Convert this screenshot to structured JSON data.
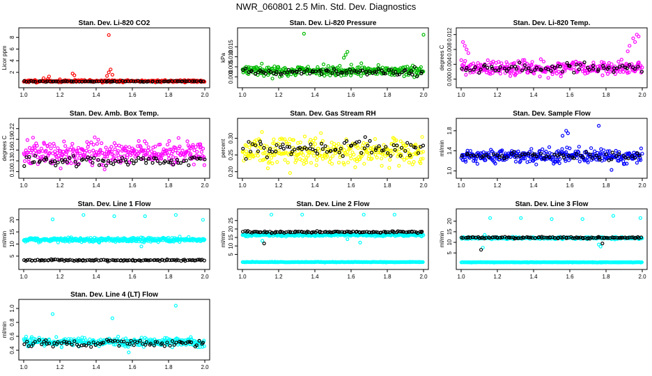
{
  "page_title": "NWR_060801  2.5 Min. Std. Dev. Diagnostics",
  "colors": {
    "red": "#ff0000",
    "green": "#00bb00",
    "magenta": "#ff00ff",
    "yellow": "#ffff00",
    "blue": "#0000ff",
    "cyan": "#00ffff",
    "black": "#000000"
  },
  "chart_data": [
    {
      "type": "scatter",
      "title": "Stan. Dev. Li-820 CO2",
      "xlabel": "",
      "ylabel": "Licor ppm",
      "xlim": [
        1.0,
        2.0
      ],
      "ylim": [
        0.2,
        8.8
      ],
      "xticks": [
        "1.0",
        "1.2",
        "1.4",
        "1.6",
        "1.8",
        "2.0"
      ],
      "yticks": [
        {
          "v": 2,
          "t": "2"
        },
        {
          "v": 4,
          "t": "4"
        },
        {
          "v": 6,
          "t": "6"
        },
        {
          "v": 8,
          "t": "8"
        }
      ],
      "color": "red",
      "series": [
        {
          "name": "colored",
          "base": 0.5,
          "spread": 0.2,
          "n": 300,
          "seed": 11,
          "outliers": [
            [
              1.47,
              8.4
            ],
            [
              1.48,
              2.5
            ],
            [
              1.47,
              2.0
            ],
            [
              1.49,
              1.6
            ],
            [
              1.27,
              1.8
            ],
            [
              1.28,
              1.5
            ],
            [
              1.14,
              1.3
            ],
            [
              1.11,
              1.0
            ],
            [
              1.46,
              1.4
            ]
          ]
        },
        {
          "name": "black",
          "base": 0.45,
          "spread": 0.1,
          "n": 80,
          "seed": 12,
          "outliers": []
        }
      ]
    },
    {
      "type": "scatter",
      "title": "Stan. Dev. Li-820 Pressure",
      "xlabel": "",
      "ylabel": "kPa",
      "xlim": [
        1.0,
        2.0
      ],
      "ylim": [
        -0.003,
        0.022
      ],
      "xticks": [
        "1.0",
        "1.2",
        "1.4",
        "1.6",
        "1.8",
        "2.0"
      ],
      "yticks": [
        {
          "v": 0.0,
          "t": "0.000"
        },
        {
          "v": 0.005,
          "t": "0.005"
        },
        {
          "v": 0.01,
          "t": "0.010"
        },
        {
          "v": 0.015,
          "t": "0.015"
        }
      ],
      "color": "green",
      "series": [
        {
          "name": "colored",
          "base": 0.003,
          "spread": 0.0025,
          "n": 320,
          "seed": 21,
          "outliers": [
            [
              1.34,
              0.0215
            ],
            [
              1.58,
              0.0125
            ],
            [
              1.57,
              0.011
            ],
            [
              2.0,
              0.021
            ],
            [
              1.56,
              0.0095
            ]
          ]
        },
        {
          "name": "black",
          "base": 0.0025,
          "spread": 0.0015,
          "n": 80,
          "seed": 22,
          "outliers": []
        }
      ]
    },
    {
      "type": "scatter",
      "title": "Stan. Dev. Li-820 Temp.",
      "xlabel": "",
      "ylabel": "degrees C",
      "xlim": [
        1.0,
        2.0
      ],
      "ylim": [
        -0.001,
        0.0125
      ],
      "xticks": [
        "1.0",
        "1.2",
        "1.4",
        "1.6",
        "1.8",
        "2.0"
      ],
      "yticks": [
        {
          "v": 0.0,
          "t": "0.000"
        },
        {
          "v": 0.004,
          "t": "0.004"
        },
        {
          "v": 0.008,
          "t": "0.008"
        },
        {
          "v": 0.012,
          "t": "0.012"
        }
      ],
      "color": "magenta",
      "series": [
        {
          "name": "colored",
          "base": 0.003,
          "spread": 0.002,
          "n": 300,
          "seed": 31,
          "outliers": [
            [
              1.01,
              0.01
            ],
            [
              1.02,
              0.009
            ],
            [
              1.03,
              0.008
            ],
            [
              1.04,
              0.007
            ],
            [
              1.95,
              0.011
            ],
            [
              1.97,
              0.012
            ],
            [
              1.98,
              0.0115
            ],
            [
              1.96,
              0.01
            ],
            [
              1.93,
              0.009
            ],
            [
              1.92,
              0.0075
            ]
          ]
        },
        {
          "name": "black",
          "base": 0.003,
          "spread": 0.0015,
          "n": 70,
          "seed": 32,
          "outliers": []
        }
      ]
    },
    {
      "type": "scatter",
      "title": "Stan. Dev. Amb. Box Temp.",
      "xlabel": "",
      "ylabel": "degrees C",
      "xlim": [
        1.0,
        2.0
      ],
      "ylim": [
        0.095,
        0.235
      ],
      "xticks": [
        "1.0",
        "1.2",
        "1.4",
        "1.6",
        "1.8",
        "2.0"
      ],
      "yticks": [
        {
          "v": 0.1,
          "t": "0.10"
        },
        {
          "v": 0.13,
          "t": "0.13"
        },
        {
          "v": 0.16,
          "t": "0.16"
        },
        {
          "v": 0.19,
          "t": "0.19"
        },
        {
          "v": 0.22,
          "t": "0.22"
        }
      ],
      "color": "magenta",
      "series": [
        {
          "name": "colored",
          "base": 0.15,
          "spread": 0.035,
          "n": 320,
          "seed": 41,
          "outliers": []
        },
        {
          "name": "black",
          "base": 0.13,
          "spread": 0.015,
          "n": 80,
          "seed": 42,
          "outliers": []
        }
      ]
    },
    {
      "type": "scatter",
      "title": "Stan. Dev. Gas Stream RH",
      "xlabel": "",
      "ylabel": "percent",
      "xlim": [
        1.0,
        2.0
      ],
      "ylim": [
        0.195,
        0.345
      ],
      "xticks": [
        "1.0",
        "1.2",
        "1.4",
        "1.6",
        "1.8",
        "2.0"
      ],
      "yticks": [
        {
          "v": 0.2,
          "t": "0.20"
        },
        {
          "v": 0.25,
          "t": "0.25"
        },
        {
          "v": 0.3,
          "t": "0.30"
        }
      ],
      "color": "yellow",
      "series": [
        {
          "name": "colored",
          "base": 0.26,
          "spread": 0.04,
          "n": 320,
          "seed": 51,
          "outliers": []
        },
        {
          "name": "black",
          "base": 0.27,
          "spread": 0.025,
          "n": 80,
          "seed": 52,
          "outliers": []
        }
      ]
    },
    {
      "type": "scatter",
      "title": "Stan. Dev. Sample Flow",
      "xlabel": "",
      "ylabel": "ml/min",
      "xlim": [
        1.0,
        2.0
      ],
      "ylim": [
        0.95,
        1.95
      ],
      "xticks": [
        "1.0",
        "1.2",
        "1.4",
        "1.6",
        "1.8",
        "2.0"
      ],
      "yticks": [
        {
          "v": 1.0,
          "t": "1.0"
        },
        {
          "v": 1.4,
          "t": "1.4"
        },
        {
          "v": 1.8,
          "t": "1.8"
        }
      ],
      "color": "blue",
      "series": [
        {
          "name": "colored",
          "base": 1.3,
          "spread": 0.14,
          "n": 320,
          "seed": 61,
          "outliers": [
            [
              1.58,
              1.8
            ],
            [
              1.59,
              1.75
            ],
            [
              1.76,
              1.9
            ],
            [
              1.56,
              1.7
            ]
          ]
        },
        {
          "name": "black",
          "base": 1.3,
          "spread": 0.07,
          "n": 60,
          "seed": 62,
          "outliers": []
        }
      ]
    },
    {
      "type": "scatter",
      "title": "Stan. Dev. Line 1 Flow",
      "xlabel": "",
      "ylabel": "ml/min",
      "xlim": [
        1.0,
        2.0
      ],
      "ylim": [
        1.5,
        22.5
      ],
      "xticks": [
        "1.0",
        "1.2",
        "1.4",
        "1.6",
        "1.8",
        "2.0"
      ],
      "yticks": [
        {
          "v": 5,
          "t": "5"
        },
        {
          "v": 10,
          "t": "10"
        },
        {
          "v": 15,
          "t": "15"
        },
        {
          "v": 20,
          "t": "20"
        }
      ],
      "color": "cyan",
      "series": [
        {
          "name": "colored",
          "base": 11.8,
          "spread": 0.9,
          "n": 360,
          "seed": 71,
          "outliers": [
            [
              1.16,
              20.2
            ],
            [
              1.33,
              22.0
            ],
            [
              1.5,
              21.5
            ],
            [
              1.67,
              21.5
            ],
            [
              1.84,
              22.0
            ],
            [
              1.99,
              20.0
            ],
            [
              1.65,
              9.0
            ]
          ]
        },
        {
          "name": "black",
          "base": 3.3,
          "spread": 0.3,
          "n": 110,
          "seed": 72,
          "outliers": []
        }
      ]
    },
    {
      "type": "scatter",
      "title": "Stan. Dev. Line 2 Flow",
      "xlabel": "",
      "ylabel": "ml/min",
      "xlim": [
        1.0,
        2.0
      ],
      "ylim": [
        -1,
        29
      ],
      "xticks": [
        "1.0",
        "1.2",
        "1.4",
        "1.6",
        "1.8",
        "2.0"
      ],
      "yticks": [
        {
          "v": 5,
          "t": "5"
        },
        {
          "v": 10,
          "t": "10"
        },
        {
          "v": 15,
          "t": "15"
        },
        {
          "v": 20,
          "t": "20"
        },
        {
          "v": 25,
          "t": "25"
        }
      ],
      "color": "cyan",
      "series": [
        {
          "name": "colored",
          "base": 16.5,
          "spread": 0.8,
          "n": 300,
          "seed": 81,
          "outliers": [
            [
              1.16,
              28.5
            ],
            [
              1.33,
              28.5
            ],
            [
              1.67,
              28.5
            ],
            [
              1.84,
              28.5
            ],
            [
              1.65,
              12.0
            ],
            [
              1.11,
              13.0
            ],
            [
              1.58,
              14.0
            ]
          ]
        },
        {
          "name": "cyan-floor",
          "base": 0.5,
          "spread": 0.15,
          "n": 260,
          "seed": 83,
          "outliers": []
        },
        {
          "name": "black",
          "base": 18.2,
          "spread": 0.5,
          "n": 110,
          "seed": 82,
          "outliers": [
            [
              1.12,
              11.5
            ]
          ]
        }
      ]
    },
    {
      "type": "scatter",
      "title": "Stan. Dev. Line 3 Flow",
      "xlabel": "",
      "ylabel": "ml/min",
      "xlim": [
        1.0,
        2.0
      ],
      "ylim": [
        -0.5,
        23.5
      ],
      "xticks": [
        "1.0",
        "1.2",
        "1.4",
        "1.6",
        "1.8",
        "2.0"
      ],
      "yticks": [
        {
          "v": 5,
          "t": "5"
        },
        {
          "v": 10,
          "t": "10"
        },
        {
          "v": 15,
          "t": "15"
        },
        {
          "v": 20,
          "t": "20"
        }
      ],
      "color": "cyan",
      "series": [
        {
          "name": "colored",
          "base": 12.0,
          "spread": 0.5,
          "n": 300,
          "seed": 91,
          "outliers": [
            [
              1.16,
              21.5
            ],
            [
              1.33,
              21.5
            ],
            [
              1.5,
              21.0
            ],
            [
              1.67,
              21.0
            ],
            [
              1.84,
              22.5
            ],
            [
              1.99,
              21.5
            ],
            [
              1.76,
              9.0
            ],
            [
              1.77,
              8.0
            ],
            [
              1.12,
              7.5
            ],
            [
              1.13,
              13.5
            ]
          ]
        },
        {
          "name": "cyan-floor",
          "base": 0.6,
          "spread": 0.1,
          "n": 260,
          "seed": 93,
          "outliers": []
        },
        {
          "name": "black",
          "base": 12.2,
          "spread": 0.4,
          "n": 110,
          "seed": 92,
          "outliers": [
            [
              1.11,
              6.5
            ],
            [
              1.78,
              9.5
            ]
          ]
        }
      ]
    },
    {
      "type": "scatter",
      "title": "Stan. Dev. Line 4 (LT) Flow",
      "xlabel": "",
      "ylabel": "ml/min",
      "xlim": [
        1.0,
        2.0
      ],
      "ylim": [
        0.33,
        1.06
      ],
      "xticks": [
        "1.0",
        "1.2",
        "1.4",
        "1.6",
        "1.8",
        "2.0"
      ],
      "yticks": [
        {
          "v": 0.4,
          "t": "0.4"
        },
        {
          "v": 0.6,
          "t": "0.6"
        },
        {
          "v": 0.8,
          "t": "0.8"
        },
        {
          "v": 1.0,
          "t": "1.0"
        }
      ],
      "color": "cyan",
      "series": [
        {
          "name": "colored",
          "base": 0.52,
          "spread": 0.06,
          "n": 320,
          "seed": 101,
          "outliers": [
            [
              1.16,
              0.92
            ],
            [
              1.49,
              0.86
            ],
            [
              1.84,
              1.04
            ],
            [
              1.58,
              0.37
            ]
          ]
        },
        {
          "name": "black",
          "base": 0.5,
          "spread": 0.045,
          "n": 80,
          "seed": 102,
          "outliers": []
        }
      ]
    }
  ]
}
